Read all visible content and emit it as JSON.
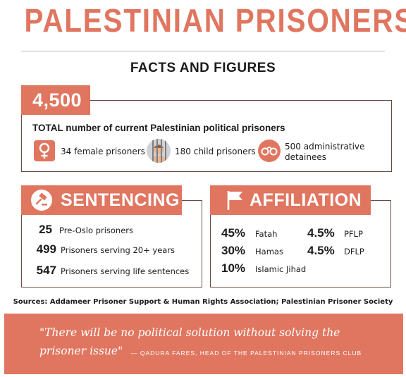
{
  "header": {
    "title": "PALESTINIAN PRISONERS",
    "subtitle": "FACTS AND FIGURES"
  },
  "totals": {
    "number": "4,500",
    "description": "TOTAL number of current Palestinian political prisoners",
    "stats": [
      {
        "icon": "female-symbol-icon",
        "label": "34 female prisoners"
      },
      {
        "icon": "child-behind-bars-icon",
        "label": "180 child prisoners"
      },
      {
        "icon": "handcuffs-icon",
        "label": "500 administrative detainees"
      }
    ]
  },
  "sentencing": {
    "heading": "SENTENCING",
    "icon": "gavel-icon",
    "rows": [
      {
        "number": "25",
        "label": "Pre-Oslo prisoners"
      },
      {
        "number": "499",
        "label": "Prisoners serving 20+ years"
      },
      {
        "number": "547",
        "label": "Prisoners serving life sentences"
      }
    ]
  },
  "affiliation": {
    "heading": "AFFILIATION",
    "icon": "flag-icon",
    "groups": [
      {
        "percent": "45%",
        "name": "Fatah"
      },
      {
        "percent": "30%",
        "name": "Hamas"
      },
      {
        "percent": "10%",
        "name": "Islamic Jihad"
      },
      {
        "percent": "4.5%",
        "name": "PFLP"
      },
      {
        "percent": "4.5%",
        "name": "DFLP"
      }
    ]
  },
  "sources": "Sources: Addameer Prisoner Support & Human Rights Association; Palestinian Prisoner Society",
  "quote": {
    "line1": "\"There will be no political solution without solving the",
    "line2": "prisoner issue\"",
    "attribution": "— QADURA FARES, HEAD OF THE PALESTINIAN PRISONERS CLUB"
  },
  "colors": {
    "accent": "#e07660",
    "border": "#6b4a43",
    "text": "#1c1c1c"
  }
}
